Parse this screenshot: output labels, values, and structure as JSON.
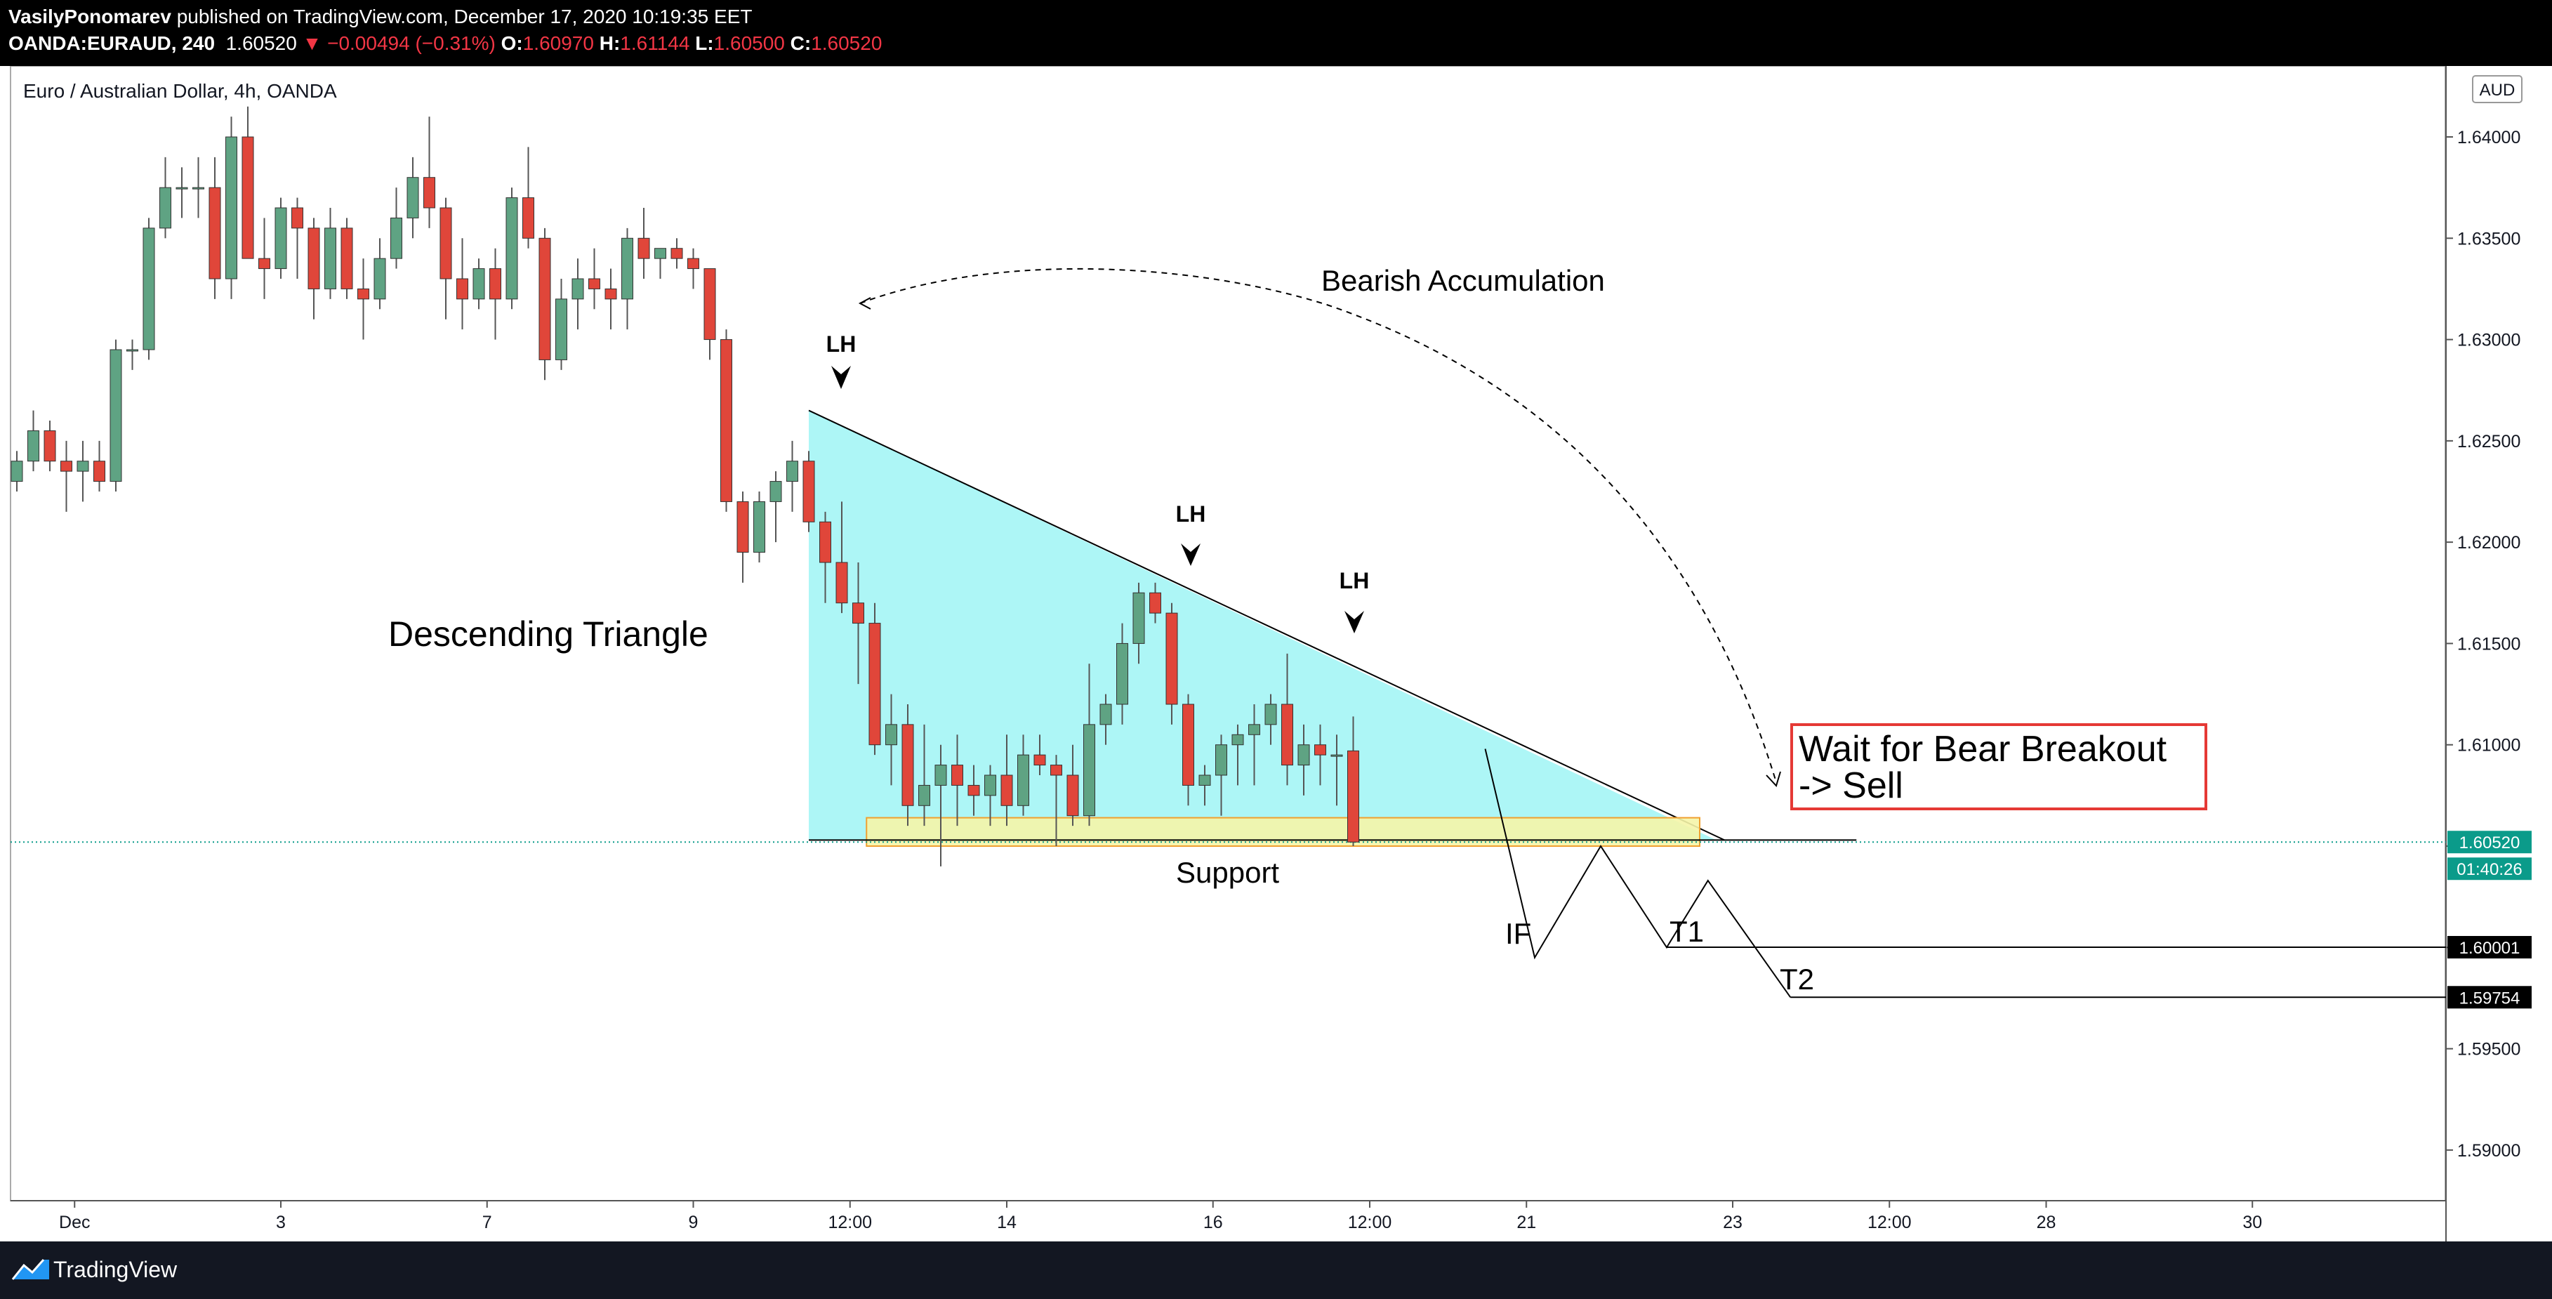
{
  "header": {
    "author": "VasilyPonomarev",
    "published_text": "published on TradingView.com, December 17, 2020 10:19:35 EET",
    "symbol": "OANDA:EURAUD, 240",
    "last": "1.60520",
    "change": "▼ −0.00494 (−0.31%)",
    "o_label": "O:",
    "o": "1.60970",
    "h_label": "H:",
    "h": "1.61144",
    "l_label": "L:",
    "l": "1.60500",
    "c_label": "C:",
    "c": "1.60520"
  },
  "footer": {
    "brand": "TradingView"
  },
  "colors": {
    "up": "#5fa383",
    "down": "#e0463a",
    "triangle_fill": "#a9f5f5",
    "support_fill": "#f5f5a8",
    "support_border": "#f0a030",
    "badge": "#0b9b8a",
    "callout_border": "#e53935"
  },
  "chart_data": {
    "type": "candlestick",
    "title": "Euro / Australian Dollar, 4h, OANDA",
    "currency_badge": "AUD",
    "y_range": [
      1.5875,
      1.6435
    ],
    "y_ticks": [
      "1.64000",
      "1.63500",
      "1.63000",
      "1.62500",
      "1.62000",
      "1.61500",
      "1.61000",
      "1.60500",
      "1.60000",
      "1.59500",
      "1.59000"
    ],
    "x_labels": [
      {
        "label": "Dec",
        "i": 3.5
      },
      {
        "label": "3",
        "i": 16
      },
      {
        "label": "7",
        "i": 28.5
      },
      {
        "label": "9",
        "i": 41
      },
      {
        "label": "12:00",
        "i": 50.5
      },
      {
        "label": "14",
        "i": 60
      },
      {
        "label": "16",
        "i": 72.5
      },
      {
        "label": "12:00",
        "i": 82
      },
      {
        "label": "21",
        "i": 91.5
      },
      {
        "label": "23",
        "i": 104
      },
      {
        "label": "12:00",
        "i": 113.5
      },
      {
        "label": "28",
        "i": 123
      },
      {
        "label": "30",
        "i": 135.5
      }
    ],
    "candles": [
      [
        1.623,
        1.6245,
        1.6225,
        1.624
      ],
      [
        1.624,
        1.6265,
        1.6235,
        1.6255
      ],
      [
        1.6255,
        1.626,
        1.6235,
        1.624
      ],
      [
        1.624,
        1.625,
        1.6215,
        1.6235
      ],
      [
        1.6235,
        1.625,
        1.622,
        1.624
      ],
      [
        1.624,
        1.625,
        1.6225,
        1.623
      ],
      [
        1.623,
        1.63,
        1.6225,
        1.6295
      ],
      [
        1.6295,
        1.63,
        1.6285,
        1.6295
      ],
      [
        1.6295,
        1.636,
        1.629,
        1.6355
      ],
      [
        1.6355,
        1.639,
        1.635,
        1.6375
      ],
      [
        1.6375,
        1.6385,
        1.636,
        1.6375
      ],
      [
        1.6375,
        1.639,
        1.636,
        1.6375
      ],
      [
        1.6375,
        1.639,
        1.632,
        1.633
      ],
      [
        1.633,
        1.641,
        1.632,
        1.64
      ],
      [
        1.64,
        1.6415,
        1.634,
        1.634
      ],
      [
        1.634,
        1.636,
        1.632,
        1.6335
      ],
      [
        1.6335,
        1.637,
        1.633,
        1.6365
      ],
      [
        1.6365,
        1.637,
        1.633,
        1.6355
      ],
      [
        1.6355,
        1.636,
        1.631,
        1.6325
      ],
      [
        1.6325,
        1.6365,
        1.632,
        1.6355
      ],
      [
        1.6355,
        1.636,
        1.632,
        1.6325
      ],
      [
        1.6325,
        1.634,
        1.63,
        1.632
      ],
      [
        1.632,
        1.635,
        1.6315,
        1.634
      ],
      [
        1.634,
        1.6375,
        1.6335,
        1.636
      ],
      [
        1.636,
        1.639,
        1.635,
        1.638
      ],
      [
        1.638,
        1.641,
        1.6355,
        1.6365
      ],
      [
        1.6365,
        1.637,
        1.631,
        1.633
      ],
      [
        1.633,
        1.635,
        1.6305,
        1.632
      ],
      [
        1.632,
        1.634,
        1.6315,
        1.6335
      ],
      [
        1.6335,
        1.6345,
        1.63,
        1.632
      ],
      [
        1.632,
        1.6375,
        1.6315,
        1.637
      ],
      [
        1.637,
        1.6395,
        1.6345,
        1.635
      ],
      [
        1.635,
        1.6355,
        1.628,
        1.629
      ],
      [
        1.629,
        1.633,
        1.6285,
        1.632
      ],
      [
        1.632,
        1.634,
        1.6305,
        1.633
      ],
      [
        1.633,
        1.6345,
        1.6315,
        1.6325
      ],
      [
        1.6325,
        1.6335,
        1.6305,
        1.632
      ],
      [
        1.632,
        1.6355,
        1.6305,
        1.635
      ],
      [
        1.635,
        1.6365,
        1.633,
        1.634
      ],
      [
        1.634,
        1.6345,
        1.633,
        1.6345
      ],
      [
        1.6345,
        1.635,
        1.6335,
        1.634
      ],
      [
        1.634,
        1.6345,
        1.6325,
        1.6335
      ],
      [
        1.6335,
        1.6335,
        1.629,
        1.63
      ],
      [
        1.63,
        1.6305,
        1.6215,
        1.622
      ],
      [
        1.622,
        1.6225,
        1.618,
        1.6195
      ],
      [
        1.6195,
        1.6225,
        1.619,
        1.622
      ],
      [
        1.622,
        1.6235,
        1.62,
        1.623
      ],
      [
        1.623,
        1.625,
        1.6215,
        1.624
      ],
      [
        1.624,
        1.6245,
        1.6205,
        1.621
      ],
      [
        1.621,
        1.6215,
        1.617,
        1.619
      ],
      [
        1.619,
        1.622,
        1.6165,
        1.617
      ],
      [
        1.617,
        1.619,
        1.613,
        1.616
      ],
      [
        1.616,
        1.617,
        1.6095,
        1.61
      ],
      [
        1.61,
        1.6125,
        1.608,
        1.611
      ],
      [
        1.611,
        1.612,
        1.606,
        1.607
      ],
      [
        1.607,
        1.611,
        1.606,
        1.608
      ],
      [
        1.608,
        1.61,
        1.604,
        1.609
      ],
      [
        1.609,
        1.6105,
        1.606,
        1.608
      ],
      [
        1.608,
        1.609,
        1.6065,
        1.6075
      ],
      [
        1.6075,
        1.609,
        1.606,
        1.6085
      ],
      [
        1.6085,
        1.6105,
        1.606,
        1.607
      ],
      [
        1.607,
        1.6105,
        1.6065,
        1.6095
      ],
      [
        1.6095,
        1.6105,
        1.6085,
        1.609
      ],
      [
        1.609,
        1.6095,
        1.605,
        1.6085
      ],
      [
        1.6085,
        1.61,
        1.606,
        1.6065
      ],
      [
        1.6065,
        1.614,
        1.606,
        1.611
      ],
      [
        1.611,
        1.6125,
        1.61,
        1.612
      ],
      [
        1.612,
        1.616,
        1.611,
        1.615
      ],
      [
        1.615,
        1.618,
        1.614,
        1.6175
      ],
      [
        1.6175,
        1.618,
        1.616,
        1.6165
      ],
      [
        1.6165,
        1.617,
        1.611,
        1.612
      ],
      [
        1.612,
        1.6125,
        1.607,
        1.608
      ],
      [
        1.608,
        1.609,
        1.607,
        1.6085
      ],
      [
        1.6085,
        1.6105,
        1.6065,
        1.61
      ],
      [
        1.61,
        1.611,
        1.608,
        1.6105
      ],
      [
        1.6105,
        1.612,
        1.608,
        1.611
      ],
      [
        1.611,
        1.6125,
        1.61,
        1.612
      ],
      [
        1.612,
        1.6145,
        1.608,
        1.609
      ],
      [
        1.609,
        1.611,
        1.6075,
        1.61
      ],
      [
        1.61,
        1.611,
        1.608,
        1.6095
      ],
      [
        1.6095,
        1.6105,
        1.607,
        1.6095
      ],
      [
        1.6097,
        1.6114,
        1.605,
        1.6052
      ]
    ],
    "annotations": {
      "bearish_accumulation": "Bearish Accumulation",
      "lh1": "LH",
      "lh2": "LH",
      "lh3": "LH",
      "descending_triangle": "Descending Triangle",
      "support": "Support",
      "if": "IF",
      "t1": "T1",
      "t2": "T2",
      "callout_line1": "Wait for Bear Breakout",
      "callout_line2": "-> Sell",
      "price_badge": "1.60520",
      "countdown_badge": "01:40:26",
      "t1_badge": "1.60001",
      "t2_badge": "1.59754"
    }
  }
}
